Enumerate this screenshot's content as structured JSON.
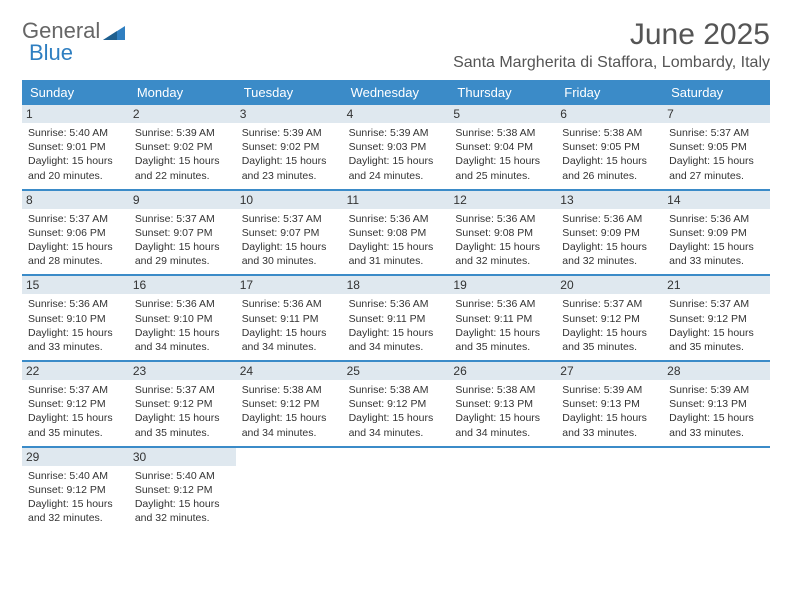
{
  "logo": {
    "text1": "General",
    "text2": "Blue"
  },
  "title": "June 2025",
  "location": "Santa Margherita di Staffora, Lombardy, Italy",
  "colors": {
    "header_bg": "#3b8bc8",
    "header_text": "#ffffff",
    "daynum_bg": "#dfe8ef",
    "divider": "#3b8bc8",
    "logo_gray": "#666666",
    "logo_blue": "#2f7fc1",
    "body_text": "#333333"
  },
  "day_headers": [
    "Sunday",
    "Monday",
    "Tuesday",
    "Wednesday",
    "Thursday",
    "Friday",
    "Saturday"
  ],
  "weeks": [
    [
      {
        "n": "1",
        "sr": "5:40 AM",
        "ss": "9:01 PM",
        "dl": "15 hours and 20 minutes."
      },
      {
        "n": "2",
        "sr": "5:39 AM",
        "ss": "9:02 PM",
        "dl": "15 hours and 22 minutes."
      },
      {
        "n": "3",
        "sr": "5:39 AM",
        "ss": "9:02 PM",
        "dl": "15 hours and 23 minutes."
      },
      {
        "n": "4",
        "sr": "5:39 AM",
        "ss": "9:03 PM",
        "dl": "15 hours and 24 minutes."
      },
      {
        "n": "5",
        "sr": "5:38 AM",
        "ss": "9:04 PM",
        "dl": "15 hours and 25 minutes."
      },
      {
        "n": "6",
        "sr": "5:38 AM",
        "ss": "9:05 PM",
        "dl": "15 hours and 26 minutes."
      },
      {
        "n": "7",
        "sr": "5:37 AM",
        "ss": "9:05 PM",
        "dl": "15 hours and 27 minutes."
      }
    ],
    [
      {
        "n": "8",
        "sr": "5:37 AM",
        "ss": "9:06 PM",
        "dl": "15 hours and 28 minutes."
      },
      {
        "n": "9",
        "sr": "5:37 AM",
        "ss": "9:07 PM",
        "dl": "15 hours and 29 minutes."
      },
      {
        "n": "10",
        "sr": "5:37 AM",
        "ss": "9:07 PM",
        "dl": "15 hours and 30 minutes."
      },
      {
        "n": "11",
        "sr": "5:36 AM",
        "ss": "9:08 PM",
        "dl": "15 hours and 31 minutes."
      },
      {
        "n": "12",
        "sr": "5:36 AM",
        "ss": "9:08 PM",
        "dl": "15 hours and 32 minutes."
      },
      {
        "n": "13",
        "sr": "5:36 AM",
        "ss": "9:09 PM",
        "dl": "15 hours and 32 minutes."
      },
      {
        "n": "14",
        "sr": "5:36 AM",
        "ss": "9:09 PM",
        "dl": "15 hours and 33 minutes."
      }
    ],
    [
      {
        "n": "15",
        "sr": "5:36 AM",
        "ss": "9:10 PM",
        "dl": "15 hours and 33 minutes."
      },
      {
        "n": "16",
        "sr": "5:36 AM",
        "ss": "9:10 PM",
        "dl": "15 hours and 34 minutes."
      },
      {
        "n": "17",
        "sr": "5:36 AM",
        "ss": "9:11 PM",
        "dl": "15 hours and 34 minutes."
      },
      {
        "n": "18",
        "sr": "5:36 AM",
        "ss": "9:11 PM",
        "dl": "15 hours and 34 minutes."
      },
      {
        "n": "19",
        "sr": "5:36 AM",
        "ss": "9:11 PM",
        "dl": "15 hours and 35 minutes."
      },
      {
        "n": "20",
        "sr": "5:37 AM",
        "ss": "9:12 PM",
        "dl": "15 hours and 35 minutes."
      },
      {
        "n": "21",
        "sr": "5:37 AM",
        "ss": "9:12 PM",
        "dl": "15 hours and 35 minutes."
      }
    ],
    [
      {
        "n": "22",
        "sr": "5:37 AM",
        "ss": "9:12 PM",
        "dl": "15 hours and 35 minutes."
      },
      {
        "n": "23",
        "sr": "5:37 AM",
        "ss": "9:12 PM",
        "dl": "15 hours and 35 minutes."
      },
      {
        "n": "24",
        "sr": "5:38 AM",
        "ss": "9:12 PM",
        "dl": "15 hours and 34 minutes."
      },
      {
        "n": "25",
        "sr": "5:38 AM",
        "ss": "9:12 PM",
        "dl": "15 hours and 34 minutes."
      },
      {
        "n": "26",
        "sr": "5:38 AM",
        "ss": "9:13 PM",
        "dl": "15 hours and 34 minutes."
      },
      {
        "n": "27",
        "sr": "5:39 AM",
        "ss": "9:13 PM",
        "dl": "15 hours and 33 minutes."
      },
      {
        "n": "28",
        "sr": "5:39 AM",
        "ss": "9:13 PM",
        "dl": "15 hours and 33 minutes."
      }
    ],
    [
      {
        "n": "29",
        "sr": "5:40 AM",
        "ss": "9:12 PM",
        "dl": "15 hours and 32 minutes."
      },
      {
        "n": "30",
        "sr": "5:40 AM",
        "ss": "9:12 PM",
        "dl": "15 hours and 32 minutes."
      },
      null,
      null,
      null,
      null,
      null
    ]
  ],
  "labels": {
    "sunrise": "Sunrise: ",
    "sunset": "Sunset: ",
    "daylight": "Daylight: "
  }
}
